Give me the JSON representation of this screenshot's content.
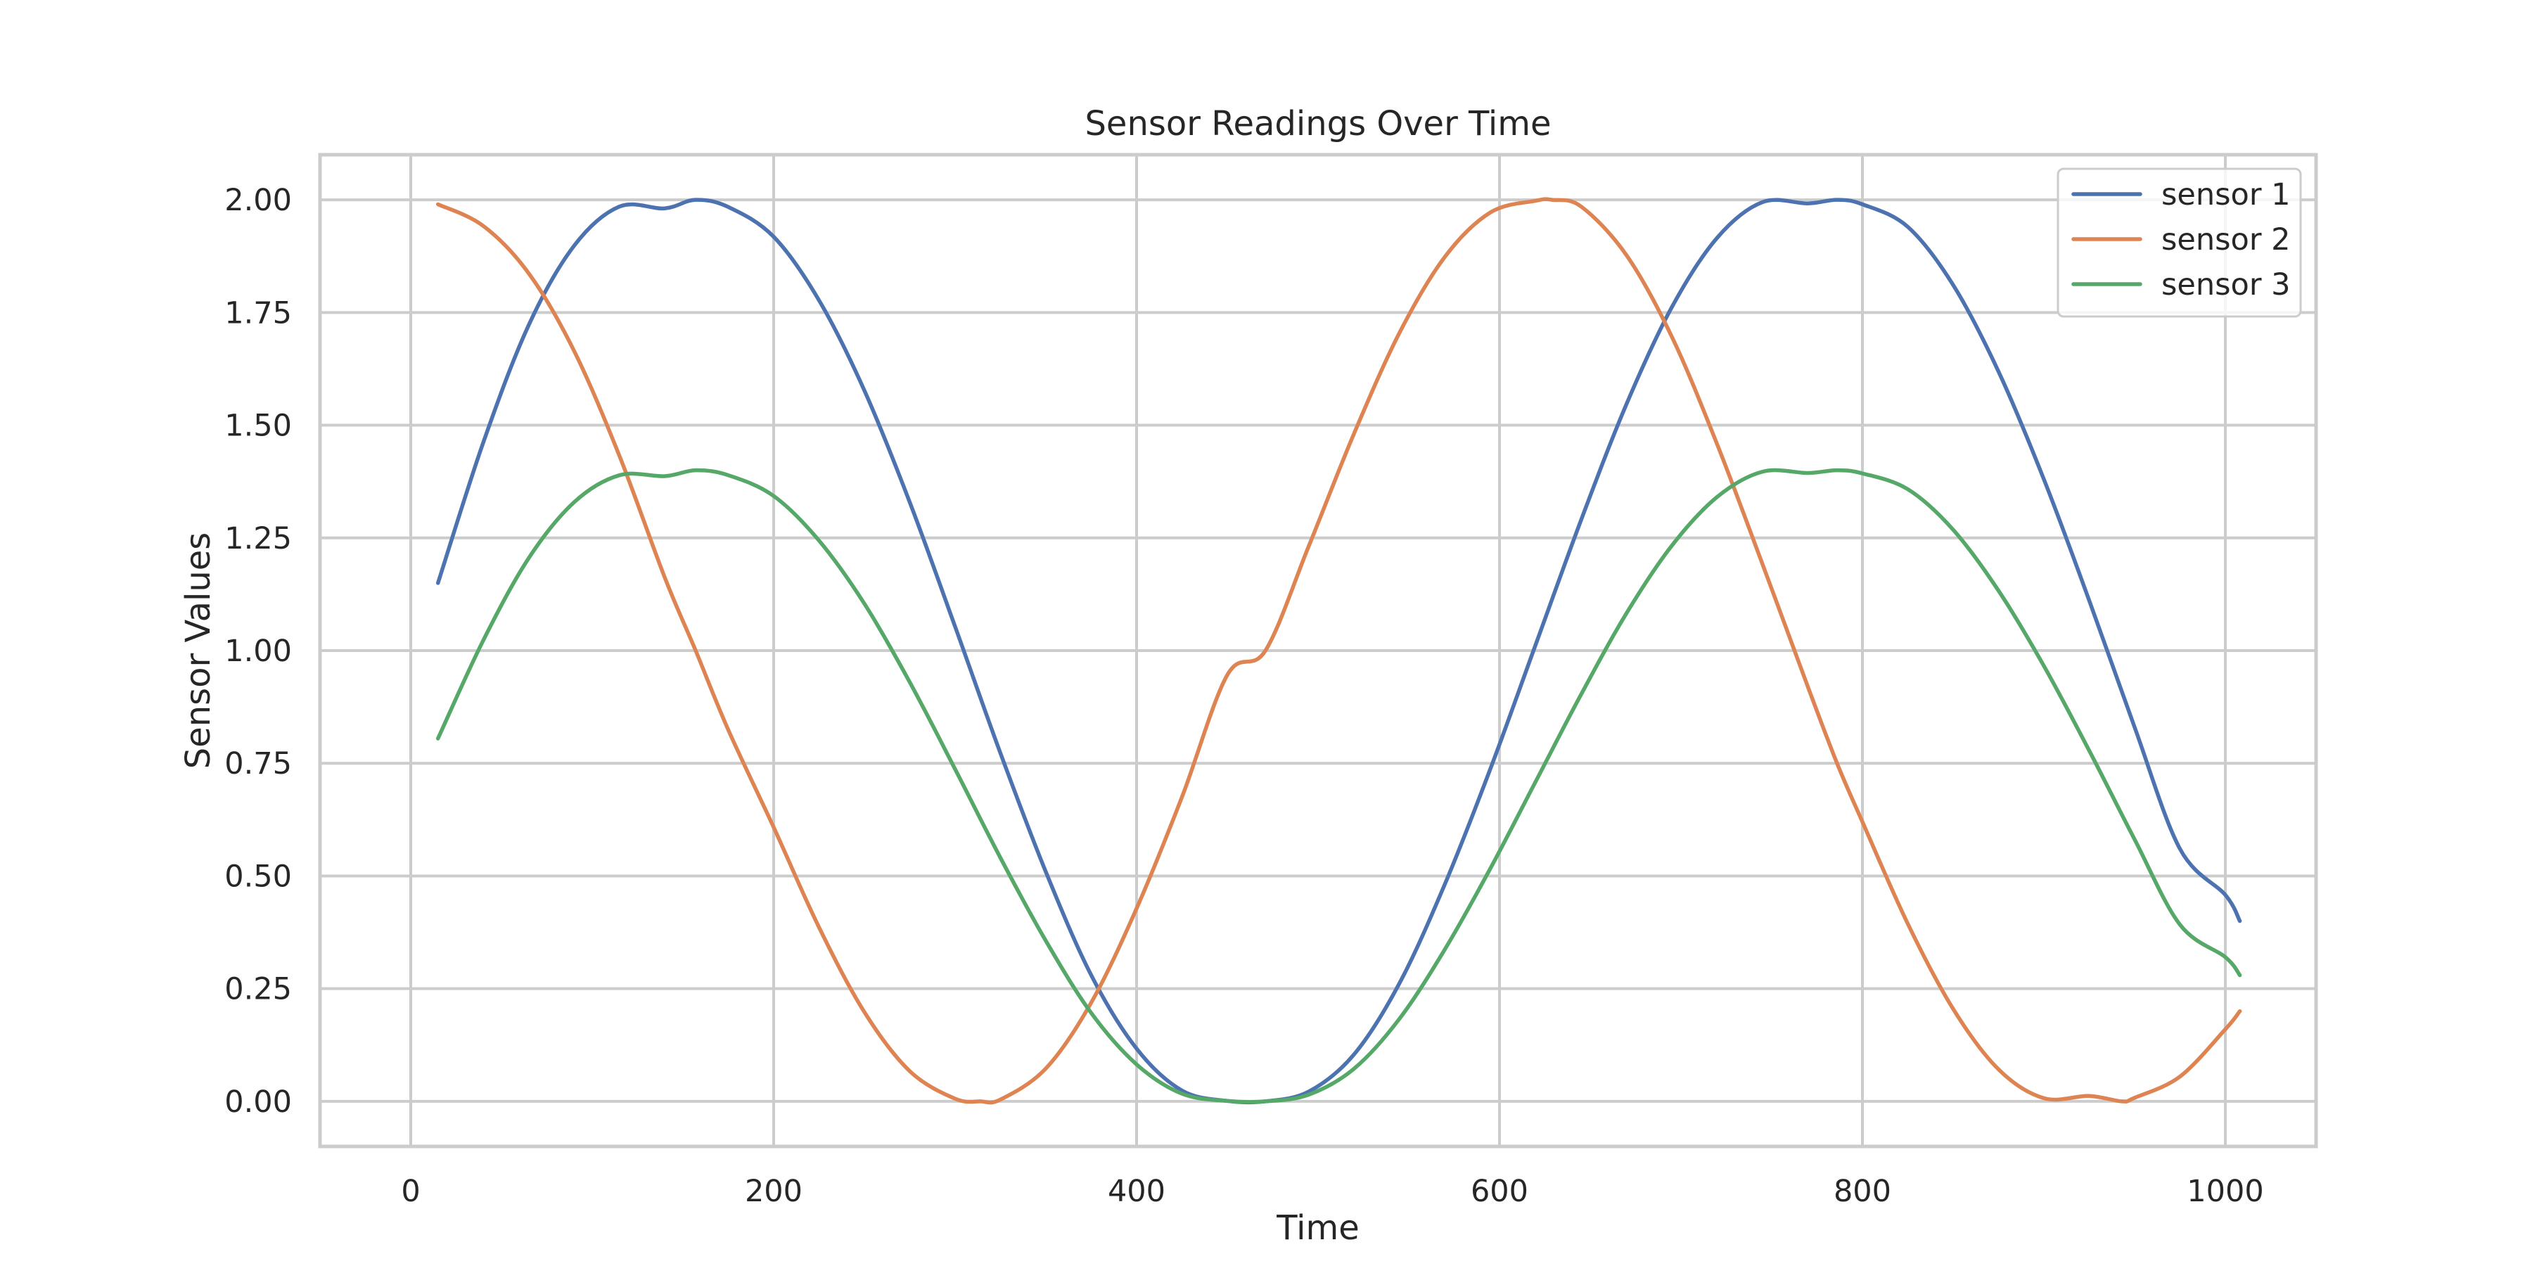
{
  "chart_data": {
    "type": "line",
    "title": "Sensor Readings Over Time",
    "xlabel": "Time",
    "ylabel": "Sensor Values",
    "xlim": [
      -50,
      1050
    ],
    "ylim": [
      -0.1,
      2.1
    ],
    "xticks": [
      0,
      200,
      400,
      600,
      800,
      1000
    ],
    "xtick_labels": [
      "0",
      "200",
      "400",
      "600",
      "800",
      "1000"
    ],
    "yticks": [
      0,
      0.25,
      0.5,
      0.75,
      1.0,
      1.25,
      1.5,
      1.75,
      2.0
    ],
    "ytick_labels": [
      "0.00",
      "0.25",
      "0.50",
      "0.75",
      "1.00",
      "1.25",
      "1.50",
      "1.75",
      "2.00"
    ],
    "grid": true,
    "legend_position": "top-right",
    "series": [
      {
        "name": "sensor 1",
        "color": "#4c72b0",
        "x": [
          15,
          40,
          65,
          90,
          115,
          140,
          157,
          175,
          200,
          225,
          250,
          275,
          300,
          325,
          350,
          375,
          400,
          425,
          450,
          471,
          495,
          520,
          545,
          570,
          595,
          620,
          645,
          670,
          695,
          720,
          745,
          770,
          786,
          800,
          825,
          850,
          875,
          900,
          925,
          950,
          975,
          1000,
          1008
        ],
        "y": [
          1.15,
          1.462,
          1.722,
          1.898,
          1.985,
          1.981,
          2.0,
          1.984,
          1.918,
          1.777,
          1.577,
          1.329,
          1.053,
          0.772,
          0.509,
          0.28,
          0.117,
          0.024,
          0.001,
          0.0,
          0.022,
          0.105,
          0.263,
          0.483,
          0.738,
          1.014,
          1.29,
          1.547,
          1.762,
          1.916,
          1.995,
          1.992,
          2.0,
          1.99,
          1.94,
          1.811,
          1.619,
          1.38,
          1.111,
          0.83,
          0.56,
          0.458,
          0.4
        ]
      },
      {
        "name": "sensor 2",
        "color": "#dd8452",
        "x": [
          15,
          40,
          65,
          90,
          115,
          140,
          157,
          175,
          200,
          225,
          250,
          275,
          300,
          314,
          325,
          350,
          375,
          400,
          425,
          450,
          471,
          495,
          520,
          545,
          570,
          595,
          620,
          629,
          645,
          670,
          695,
          720,
          745,
          770,
          786,
          800,
          825,
          850,
          875,
          900,
          925,
          943,
          950,
          975,
          1000,
          1008
        ],
        "y": [
          1.99,
          1.942,
          1.837,
          1.665,
          1.432,
          1.162,
          1.0,
          0.824,
          0.608,
          0.386,
          0.198,
          0.067,
          0.006,
          0.0,
          0.004,
          0.073,
          0.219,
          0.428,
          0.675,
          0.946,
          1.0,
          1.233,
          1.483,
          1.706,
          1.874,
          1.972,
          1.998,
          2.0,
          1.985,
          1.877,
          1.696,
          1.457,
          1.191,
          0.919,
          0.75,
          0.62,
          0.394,
          0.205,
          0.071,
          0.007,
          0.012,
          0.0,
          0.008,
          0.055,
          0.16,
          0.2
        ]
      },
      {
        "name": "sensor 3",
        "color": "#55a868",
        "x": [
          15,
          40,
          65,
          90,
          115,
          140,
          157,
          175,
          200,
          225,
          250,
          275,
          300,
          325,
          350,
          375,
          400,
          425,
          450,
          471,
          495,
          520,
          545,
          570,
          595,
          620,
          645,
          670,
          695,
          720,
          745,
          770,
          786,
          800,
          825,
          850,
          875,
          900,
          925,
          950,
          975,
          1000,
          1008
        ],
        "y": [
          0.805,
          1.023,
          1.205,
          1.329,
          1.389,
          1.387,
          1.4,
          1.389,
          1.343,
          1.244,
          1.104,
          0.93,
          0.737,
          0.54,
          0.356,
          0.196,
          0.082,
          0.017,
          0.001,
          0.0,
          0.015,
          0.073,
          0.184,
          0.338,
          0.517,
          0.71,
          0.903,
          1.083,
          1.233,
          1.341,
          1.397,
          1.394,
          1.4,
          1.393,
          1.358,
          1.268,
          1.133,
          0.966,
          0.778,
          0.581,
          0.392,
          0.32,
          0.28
        ]
      }
    ]
  }
}
